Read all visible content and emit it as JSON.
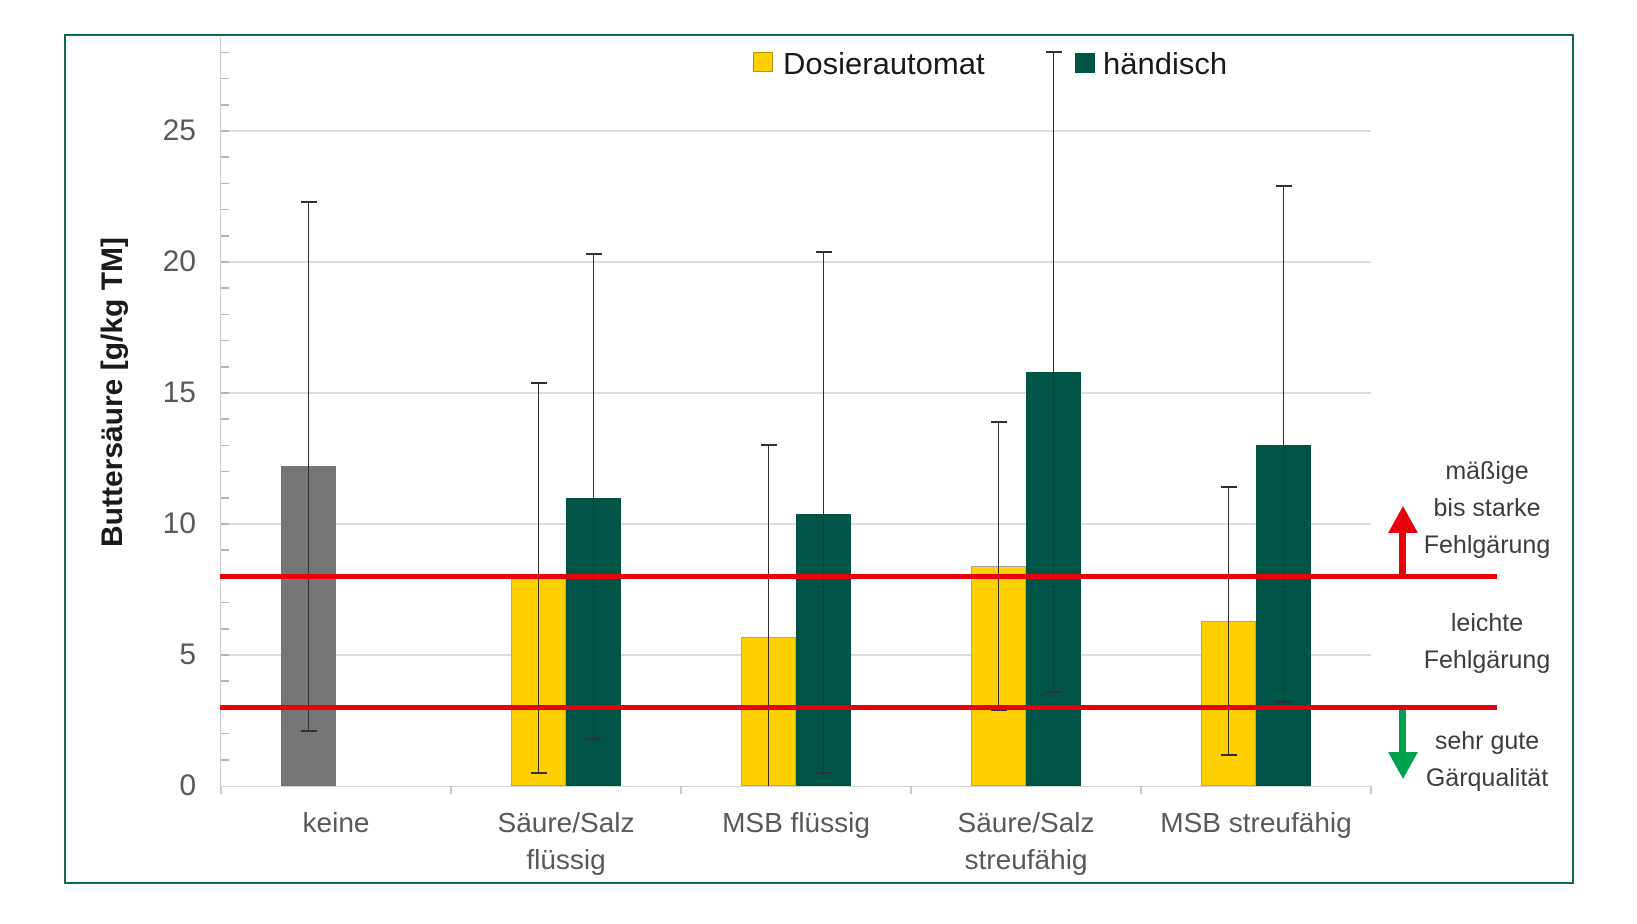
{
  "chart": {
    "border_color": "#0F6A55",
    "background": "#FFFFFF",
    "ylabel": "Buttersäure [g/kg TM]",
    "legend": [
      {
        "label": "Dosierautomat",
        "color": "#FFD000"
      },
      {
        "label": "händisch",
        "color": "#005446"
      }
    ],
    "annotations": {
      "upper": [
        "mäßige",
        "bis starke",
        "Fehlgärung"
      ],
      "middle": [
        "leichte",
        "Fehlgärung"
      ],
      "lower": [
        "sehr gute",
        "Gärqualität"
      ],
      "up_arrow_color": "#E8000B",
      "down_arrow_color": "#00A14E"
    }
  },
  "chart_data": {
    "type": "bar",
    "title": "",
    "ylabel": "Buttersäure [g/kg TM]",
    "xlabel": "",
    "ylim": [
      0,
      28.5
    ],
    "yticks": [
      0,
      5,
      10,
      15,
      20,
      25
    ],
    "minor_tick_step": 1,
    "grid": true,
    "legend_position": "top-center",
    "legend": [
      "Dosierautomat",
      "händisch"
    ],
    "series_colors": {
      "Dosierautomat": "#FFD000",
      "händisch": "#005446",
      "keine": "#757575"
    },
    "bar_border_color": "#A6A6A6",
    "error_bar_color": "#303030",
    "gridline_color": "#DCDCDC",
    "tick_label_color": "#595959",
    "groups": [
      {
        "category": "keine",
        "bars": [
          {
            "series": "keine",
            "value": 12.2,
            "err_low": 2.1,
            "err_high": 22.3
          }
        ]
      },
      {
        "category": "Säure/Salz\nflüssig",
        "bars": [
          {
            "series": "Dosierautomat",
            "value": 8.0,
            "err_low": 0.5,
            "err_high": 15.4
          },
          {
            "series": "händisch",
            "value": 11.0,
            "err_low": 1.8,
            "err_high": 20.3
          }
        ]
      },
      {
        "category": "MSB flüssig",
        "bars": [
          {
            "series": "Dosierautomat",
            "value": 5.7,
            "err_low": 0.0,
            "err_high": 13.0
          },
          {
            "series": "händisch",
            "value": 10.4,
            "err_low": 0.5,
            "err_high": 20.4
          }
        ]
      },
      {
        "category": "Säure/Salz\nstreufähig",
        "bars": [
          {
            "series": "Dosierautomat",
            "value": 8.4,
            "err_low": 2.9,
            "err_high": 13.9
          },
          {
            "series": "händisch",
            "value": 15.8,
            "err_low": 3.6,
            "err_high": 28.0
          }
        ]
      },
      {
        "category": "MSB streufähig",
        "bars": [
          {
            "series": "Dosierautomat",
            "value": 6.3,
            "err_low": 1.2,
            "err_high": 11.4
          },
          {
            "series": "händisch",
            "value": 13.0,
            "err_low": 3.2,
            "err_high": 22.9
          }
        ]
      }
    ],
    "thresholds": [
      {
        "value": 8,
        "color": "#E8000B"
      },
      {
        "value": 3,
        "color": "#E8000B"
      }
    ]
  }
}
